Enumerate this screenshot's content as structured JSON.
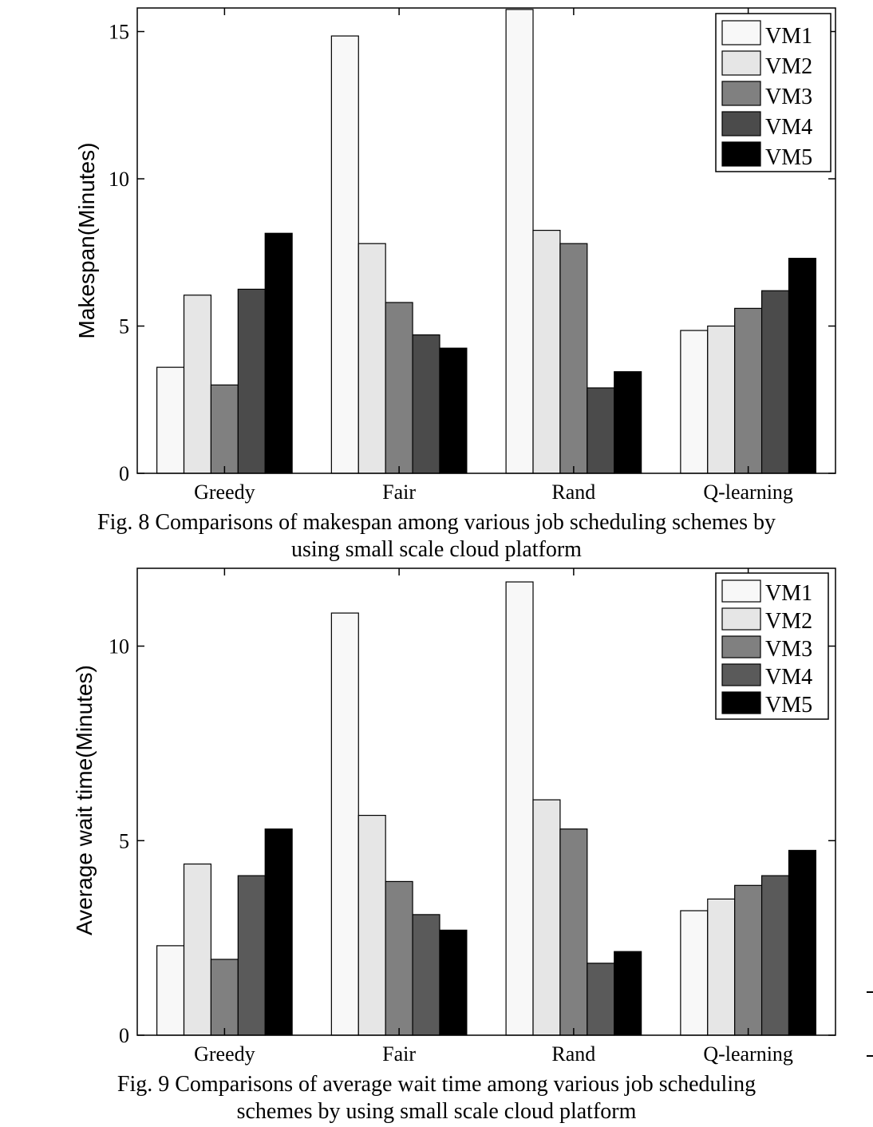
{
  "chart_data": [
    {
      "type": "bar",
      "categories": [
        "Greedy",
        "Fair",
        "Rand",
        "Q-learning"
      ],
      "series": [
        {
          "name": "VM1",
          "color": "#f8f8f8",
          "values": [
            3.6,
            14.85,
            15.75,
            4.85
          ]
        },
        {
          "name": "VM2",
          "color": "#e6e6e6",
          "values": [
            6.05,
            7.8,
            8.25,
            5.0
          ]
        },
        {
          "name": "VM3",
          "color": "#808080",
          "values": [
            3.0,
            5.8,
            7.8,
            5.6
          ]
        },
        {
          "name": "VM4",
          "color": "#4b4b4b",
          "values": [
            6.25,
            4.7,
            2.9,
            6.2
          ]
        },
        {
          "name": "VM5",
          "color": "#000000",
          "values": [
            8.15,
            4.25,
            3.45,
            7.3
          ]
        }
      ],
      "ylabel": "Makespan(Minutes)",
      "ylim": [
        0,
        15.8
      ],
      "yticks": [
        "0",
        "5",
        "10",
        "15"
      ],
      "legend": "top-right",
      "caption_line1": "Fig. 8 Comparisons of makespan among various job scheduling schemes by",
      "caption_line2": "using small scale cloud platform"
    },
    {
      "type": "bar",
      "categories": [
        "Greedy",
        "Fair",
        "Rand",
        "Q-learning"
      ],
      "series": [
        {
          "name": "VM1",
          "color": "#f8f8f8",
          "values": [
            2.3,
            10.85,
            11.65,
            3.2
          ]
        },
        {
          "name": "VM2",
          "color": "#e6e6e6",
          "values": [
            4.4,
            5.65,
            6.05,
            3.5
          ]
        },
        {
          "name": "VM3",
          "color": "#808080",
          "values": [
            1.95,
            3.95,
            5.3,
            3.85
          ]
        },
        {
          "name": "VM4",
          "color": "#5a5a5a",
          "values": [
            4.1,
            3.1,
            1.85,
            4.1
          ]
        },
        {
          "name": "VM5",
          "color": "#000000",
          "values": [
            5.3,
            2.7,
            2.15,
            4.75
          ]
        }
      ],
      "ylabel": "Average wait time(Minutes)",
      "ylim": [
        0,
        12
      ],
      "yticks": [
        "0",
        "5",
        "10"
      ],
      "legend": "top-right",
      "caption_line1": "Fig. 9 Comparisons of average wait time among various job scheduling",
      "caption_line2": "schemes by using small scale cloud platform"
    }
  ]
}
